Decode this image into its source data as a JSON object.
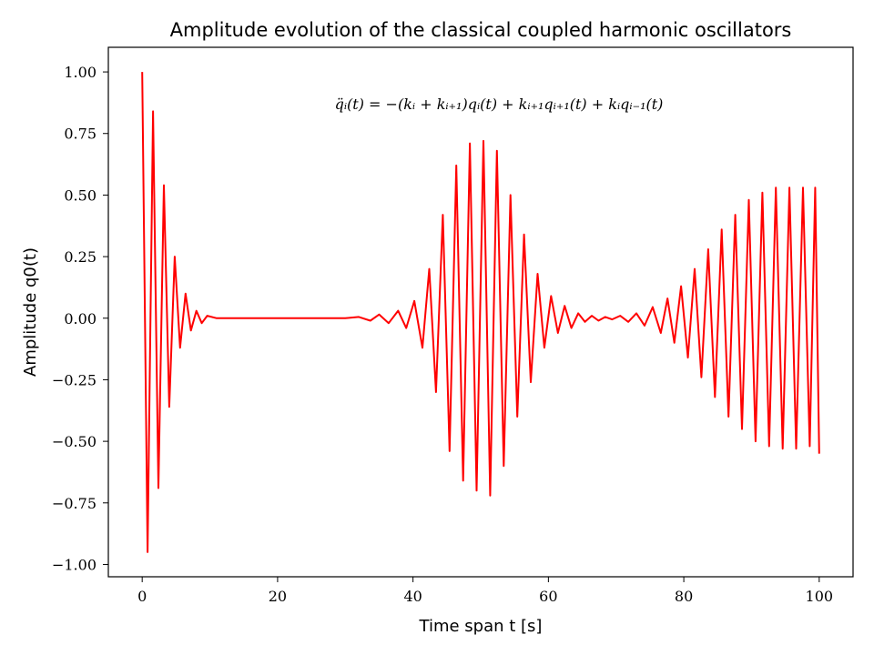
{
  "chart_data": {
    "type": "line",
    "title": "Amplitude evolution of the classical coupled harmonic oscillators",
    "xlabel": "Time span t [s]",
    "ylabel": "Amplitude q0(t)",
    "annotation": "q̈ᵢ(t) = −(kᵢ + kᵢ₊₁)qᵢ(t) + kᵢ₊₁qᵢ₊₁(t) + kᵢqᵢ₋₁(t)",
    "xlim": [
      -5,
      105
    ],
    "ylim": [
      -1.05,
      1.1
    ],
    "x_ticks": [
      0,
      20,
      40,
      60,
      80,
      100
    ],
    "x_tick_labels": [
      "0",
      "20",
      "40",
      "60",
      "80",
      "100"
    ],
    "y_ticks": [
      -1.0,
      -0.75,
      -0.5,
      -0.25,
      0.0,
      0.25,
      0.5,
      0.75,
      1.0
    ],
    "y_tick_labels": [
      "−1.00",
      "−0.75",
      "−0.50",
      "−0.25",
      "0.00",
      "0.25",
      "0.50",
      "0.75",
      "1.00"
    ],
    "grid": false,
    "series": [
      {
        "color": "#ff0000",
        "x": [
          0,
          0.8,
          1.6,
          2.4,
          3.2,
          4.0,
          4.8,
          5.6,
          6.4,
          7.2,
          8.0,
          8.8,
          9.6,
          11,
          20,
          30,
          32,
          33.7,
          35,
          36.4,
          37.8,
          39,
          40.2,
          41.4,
          42.4,
          43.4,
          44.4,
          45.4,
          46.4,
          47.4,
          48.4,
          49.4,
          50.4,
          51.4,
          52.4,
          53.4,
          54.4,
          55.4,
          56.4,
          57.4,
          58.4,
          59.4,
          60.4,
          61.4,
          62.4,
          63.4,
          64.4,
          65.4,
          66.4,
          67.4,
          68.4,
          69.4,
          70.6,
          71.8,
          73.0,
          74.2,
          75.4,
          76.6,
          77.6,
          78.6,
          79.6,
          80.6,
          81.6,
          82.6,
          83.6,
          84.6,
          85.6,
          86.6,
          87.6,
          88.6,
          89.6,
          90.6,
          91.6,
          92.6,
          93.6,
          94.6,
          95.6,
          96.6,
          97.6,
          98.6,
          99.4,
          100.0
        ],
        "y": [
          1.0,
          -0.95,
          0.84,
          -0.69,
          0.54,
          -0.36,
          0.25,
          -0.12,
          0.1,
          -0.05,
          0.03,
          -0.02,
          0.01,
          0.0,
          0.0,
          0.0,
          0.005,
          -0.01,
          0.015,
          -0.02,
          0.03,
          -0.04,
          0.07,
          -0.12,
          0.2,
          -0.3,
          0.42,
          -0.54,
          0.62,
          -0.66,
          0.71,
          -0.7,
          0.72,
          -0.72,
          0.68,
          -0.6,
          0.5,
          -0.4,
          0.34,
          -0.26,
          0.18,
          -0.12,
          0.09,
          -0.06,
          0.05,
          -0.04,
          0.02,
          -0.015,
          0.01,
          -0.01,
          0.005,
          -0.005,
          0.01,
          -0.015,
          0.02,
          -0.03,
          0.045,
          -0.06,
          0.08,
          -0.1,
          0.13,
          -0.16,
          0.2,
          -0.24,
          0.28,
          -0.32,
          0.36,
          -0.4,
          0.42,
          -0.45,
          0.48,
          -0.5,
          0.51,
          -0.52,
          0.53,
          -0.53,
          0.53,
          -0.53,
          0.53,
          -0.52,
          0.53,
          -0.55
        ]
      }
    ]
  }
}
